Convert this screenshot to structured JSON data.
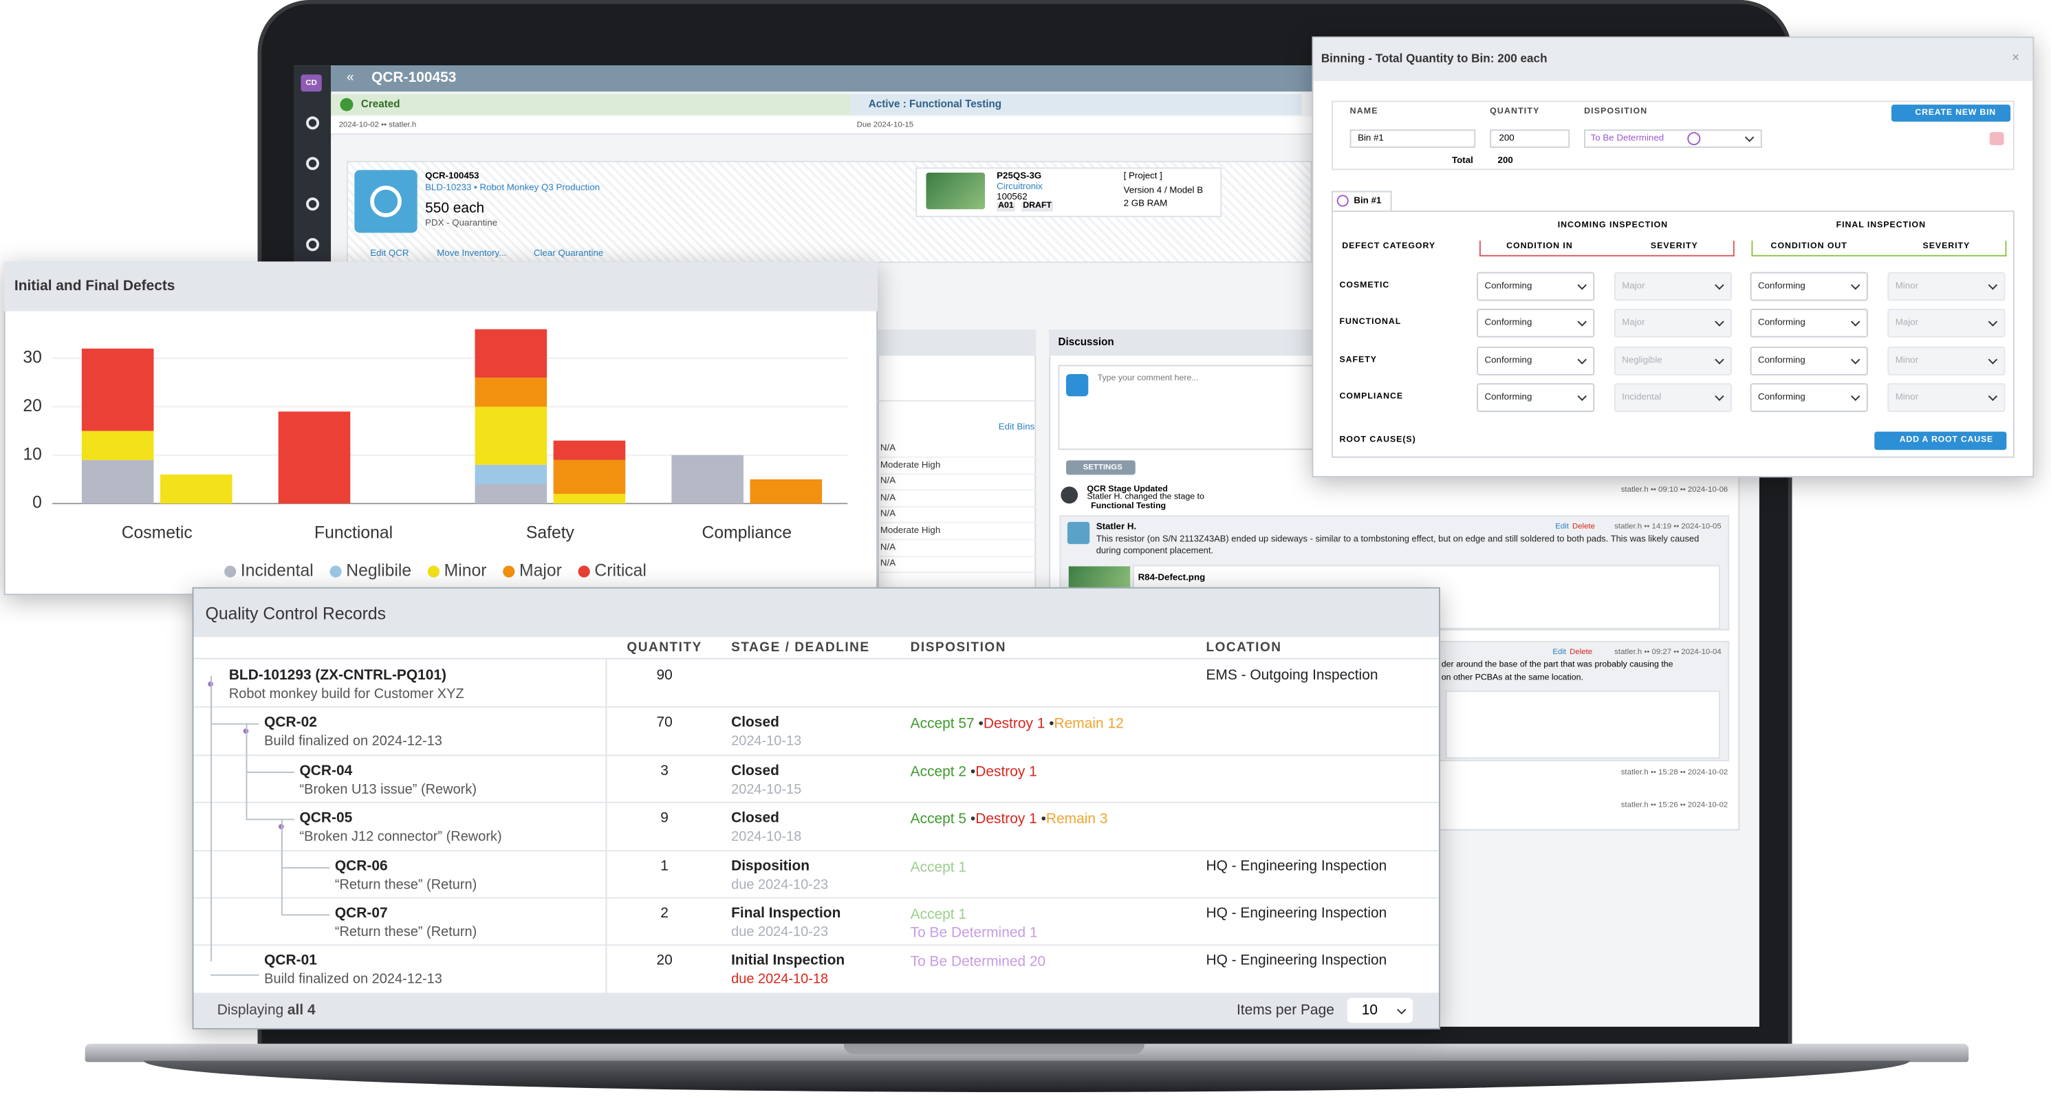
{
  "app": {
    "user_initials": "CD",
    "record_id": "QCR-100453",
    "stages": [
      {
        "name": "Created",
        "meta": "2024-10-02 •• statler.h"
      },
      {
        "name": "Active : Functional Testing",
        "meta": "Due 2024-10-15"
      }
    ],
    "summary": {
      "id": "QCR-100453",
      "build": "BLD-10233 • Robot Monkey Q3 Production",
      "quantity": "550 each",
      "location": "PDX - Quarantine"
    },
    "part": {
      "number": "P25QS-3G",
      "vendor": "Circuitronix",
      "id": "100562",
      "tags": [
        "A01",
        "DRAFT"
      ],
      "project": "[ Project ]",
      "version": "Version 4 / Model B",
      "memory": "2 GB RAM"
    },
    "actions": [
      "Edit QCR",
      "Move Inventory...",
      "Clear Quarantine"
    ]
  },
  "bins_panel": {
    "link": "Edit Bins",
    "rows": [
      "N/A",
      "Moderate High",
      "N/A",
      "N/A",
      "N/A",
      "Moderate High",
      "N/A",
      "N/A"
    ]
  },
  "discussion": {
    "title": "Discussion",
    "placeholder": "Type your comment here...",
    "settings": "SETTINGS",
    "event": {
      "title": "QCR Stage Updated",
      "text": "Statler H. changed the stage to",
      "stage": "Functional Testing",
      "meta": "statler.h •• 09:10 •• 2024-10-06"
    },
    "comments": [
      {
        "author": "Statler H.",
        "edit": "Edit",
        "delete": "Delete",
        "meta": "statler.h •• 14:19 •• 2024-10-05",
        "text": "This resistor (on S/N 2113Z43AB) ended up sideways - similar to a tombstoning effect, but on edge and still soldered to both pads. This was likely caused during component placement.",
        "attachment": "R84-Defect.png"
      },
      {
        "edit": "Edit",
        "delete": "Delete",
        "meta": "statler.h •• 09:27 •• 2024-10-04",
        "text": [
          "der around the base of the part that was probably causing the",
          "on other PCBAs at the same location."
        ]
      }
    ],
    "metas": [
      "statler.h •• 15:28 •• 2024-10-02",
      "statler.h •• 15:26 •• 2024-10-02"
    ]
  },
  "binning": {
    "title": "Binning - Total Quantity to Bin: 200 each",
    "close": "×",
    "columns": [
      "NAME",
      "QUANTITY",
      "DISPOSITION"
    ],
    "create": "CREATE NEW BIN",
    "bin": {
      "name": "Bin #1",
      "quantity": "200",
      "disposition": "To Be Determined"
    },
    "total_label": "Total",
    "total": "200",
    "tab": "Bin #1",
    "groups": [
      "INCOMING INSPECTION",
      "FINAL INSPECTION"
    ],
    "headers": [
      "DEFECT CATEGORY",
      "CONDITION IN",
      "SEVERITY",
      "CONDITION OUT",
      "SEVERITY"
    ],
    "rows": [
      [
        "COSMETIC",
        "Conforming",
        "Major",
        "Conforming",
        "Minor"
      ],
      [
        "FUNCTIONAL",
        "Conforming",
        "Major",
        "Conforming",
        "Major"
      ],
      [
        "SAFETY",
        "Conforming",
        "Negligible",
        "Conforming",
        "Minor"
      ],
      [
        "COMPLIANCE",
        "Conforming",
        "Incidental",
        "Conforming",
        "Minor"
      ]
    ],
    "root_cause": "ROOT CAUSE(S)",
    "add_root_cause": "ADD A ROOT CAUSE"
  },
  "chart_data": {
    "type": "bar",
    "stacked": true,
    "title": "Initial and Final Defects",
    "categories": [
      "Cosmetic",
      null,
      "Functional",
      null,
      "Safety",
      null,
      "Compliance",
      null
    ],
    "series": [
      {
        "name": "Incidental",
        "color": "#b5b9c6",
        "values": [
          9,
          0,
          0,
          0,
          4,
          0,
          10,
          0
        ]
      },
      {
        "name": "Neglibile",
        "color": "#9dc7e6",
        "values": [
          0,
          0,
          0,
          0,
          4,
          0,
          0,
          0
        ]
      },
      {
        "name": "Minor",
        "color": "#f3e119",
        "values": [
          6,
          6,
          0,
          0,
          12,
          2,
          0,
          0
        ]
      },
      {
        "name": "Major",
        "color": "#f2900f",
        "values": [
          0,
          0,
          0,
          0,
          6,
          7,
          0,
          5
        ]
      },
      {
        "name": "Critical",
        "color": "#ea4036",
        "values": [
          17,
          0,
          19,
          0,
          10,
          4,
          0,
          0
        ]
      }
    ],
    "ylim": [
      0,
      37
    ],
    "yticks": [
      0,
      10,
      20,
      30
    ],
    "grid": true,
    "legend": "bottom"
  },
  "records": {
    "title": "Quality Control Records",
    "columns": [
      "QUANTITY",
      "STAGE / DEADLINE",
      "DISPOSITION",
      "LOCATION"
    ],
    "rows": [
      {
        "name": "BLD-101293 (ZX-CNTRL-PQ101)",
        "description": "Robot monkey build for Customer XYZ",
        "quantity": 90,
        "location": "EMS - Outgoing Inspection",
        "children": [
          {
            "name": "QCR-02",
            "description": "Build finalized on 2024-12-13",
            "quantity": 70,
            "stage": "Closed",
            "deadline": "2024-10-13",
            "deadline_color": "#a9afb8",
            "disposition": [
              [
                {
                  "text": "Accept 57",
                  "color": "#3f9a2c"
                },
                {
                  "text": "Destroy 1",
                  "color": "#d8271d"
                },
                {
                  "text": "Remain 12",
                  "color": "#f0a431"
                }
              ]
            ],
            "children": [
              {
                "name": "QCR-04",
                "description": "“Broken U13 issue” (Rework)",
                "quantity": 3,
                "stage": "Closed",
                "deadline": "2024-10-15",
                "deadline_color": "#a9afb8",
                "disposition": [
                  [
                    {
                      "text": "Accept 2",
                      "color": "#3f9a2c"
                    },
                    {
                      "text": "Destroy 1",
                      "color": "#d8271d"
                    }
                  ]
                ]
              },
              {
                "name": "QCR-05",
                "description": "“Broken J12 connector” (Rework)",
                "quantity": 9,
                "stage": "Closed",
                "deadline": "2024-10-18",
                "deadline_color": "#a9afb8",
                "disposition": [
                  [
                    {
                      "text": "Accept 5",
                      "color": "#3f9a2c"
                    },
                    {
                      "text": "Destroy 1",
                      "color": "#d8271d"
                    },
                    {
                      "text": "Remain 3",
                      "color": "#f0a431"
                    }
                  ]
                ],
                "children": [
                  {
                    "name": "QCR-06",
                    "description": "“Return these” (Return)",
                    "quantity": 1,
                    "stage": "Disposition",
                    "deadline": "due 2024-10-23",
                    "deadline_color": "#a9afb8",
                    "disposition": [
                      [
                        {
                          "text": "Accept 1",
                          "color": "#9bcf8c"
                        }
                      ]
                    ],
                    "location": "HQ - Engineering Inspection"
                  },
                  {
                    "name": "QCR-07",
                    "description": "“Return these” (Return)",
                    "quantity": 2,
                    "stage": "Final Inspection",
                    "deadline": "due 2024-10-23",
                    "deadline_color": "#a9afb8",
                    "disposition": [
                      [
                        {
                          "text": "Accept 1",
                          "color": "#9bcf8c"
                        }
                      ],
                      [
                        {
                          "text": "To Be Determined 1",
                          "color": "#c79ce3"
                        }
                      ]
                    ],
                    "location": "HQ - Engineering Inspection"
                  }
                ]
              }
            ]
          },
          {
            "name": "QCR-01",
            "description": "Build finalized on 2024-12-13",
            "quantity": 20,
            "stage": "Initial Inspection",
            "deadline": "due 2024-10-18",
            "deadline_color": "#d8271d",
            "disposition": [
              [
                {
                  "text": "To Be Determined 20",
                  "color": "#c79ce3"
                }
              ]
            ],
            "location": "HQ - Engineering Inspection"
          }
        ]
      }
    ],
    "footer": {
      "displaying": "Displaying",
      "count": "all 4",
      "per_page_label": "Items per Page",
      "per_page": "10"
    }
  }
}
